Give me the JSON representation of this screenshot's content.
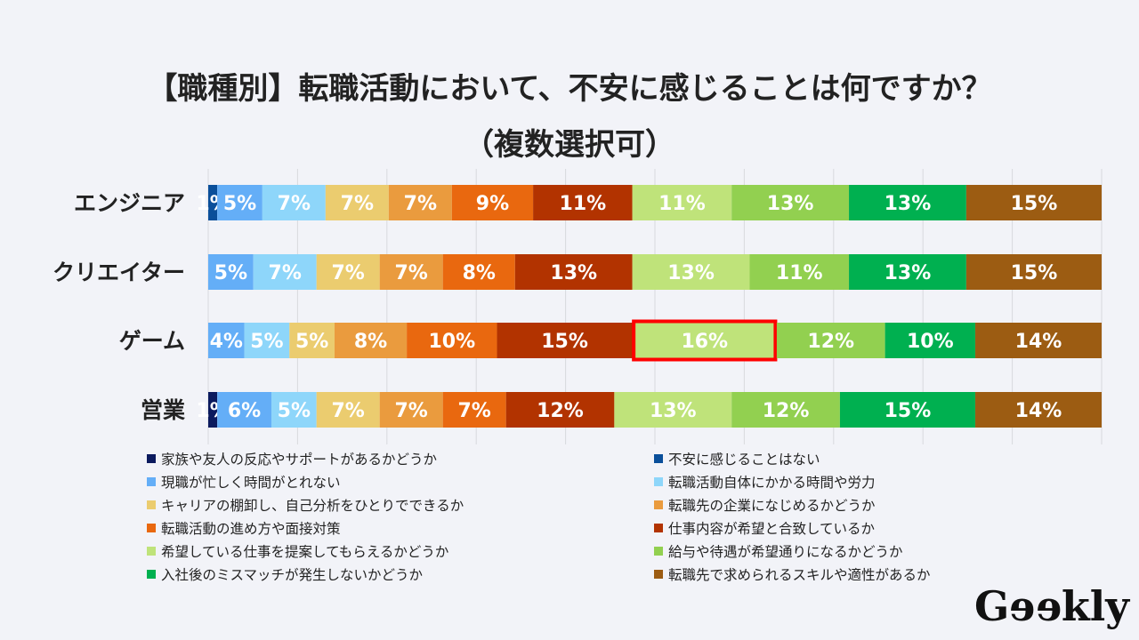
{
  "chart_data": {
    "type": "bar",
    "orientation": "horizontal",
    "stacked": true,
    "title": "【職種別】転職活動において、不安に感じることは何ですか？",
    "subtitle": "（複数選択可）",
    "categories": [
      "エンジニア",
      "クリエイター",
      "ゲーム",
      "営業"
    ],
    "xlim": [
      0,
      100
    ],
    "grid": true,
    "legend_position": "bottom",
    "highlight": {
      "category": "ゲーム",
      "series": "希望している仕事を提案してもらえるかどうか",
      "color": "#ff0000"
    },
    "series": [
      {
        "name": "家族や友人の反応やサポートがあるかどうか",
        "color": "#0b1a5e",
        "values": [
          0,
          0,
          0,
          1
        ]
      },
      {
        "name": "不安に感じることはない",
        "color": "#0a4f9a",
        "values": [
          1,
          0,
          0,
          0
        ]
      },
      {
        "name": "現職が忙しく時間がとれない",
        "color": "#64aef7",
        "values": [
          5,
          5,
          4,
          6
        ]
      },
      {
        "name": "転職活動自体にかかる時間や労力",
        "color": "#8ed6fa",
        "values": [
          7,
          7,
          5,
          5
        ]
      },
      {
        "name": "キャリアの棚卸し、自己分析をひとりでできるか",
        "color": "#ebcc6f",
        "values": [
          7,
          7,
          5,
          7
        ]
      },
      {
        "name": "転職先の企業になじめるかどうか",
        "color": "#ea9b3e",
        "values": [
          7,
          7,
          8,
          7
        ]
      },
      {
        "name": "転職活動の進め方や面接対策",
        "color": "#e9680f",
        "values": [
          9,
          8,
          10,
          7
        ]
      },
      {
        "name": "仕事内容が希望と合致しているか",
        "color": "#b23300",
        "values": [
          11,
          13,
          15,
          12
        ]
      },
      {
        "name": "希望している仕事を提案してもらえるかどうか",
        "color": "#bfe37a",
        "values": [
          11,
          13,
          16,
          13
        ]
      },
      {
        "name": "給与や待遇が希望通りになるかどうか",
        "color": "#92d050",
        "values": [
          13,
          11,
          12,
          12
        ]
      },
      {
        "name": "入社後のミスマッチが発生しないかどうか",
        "color": "#00b050",
        "values": [
          13,
          13,
          10,
          15
        ]
      },
      {
        "name": "転職先で求められるスキルや適性があるか",
        "color": "#9c5c12",
        "values": [
          15,
          15,
          14,
          14
        ]
      }
    ]
  },
  "brand": "Geekly"
}
